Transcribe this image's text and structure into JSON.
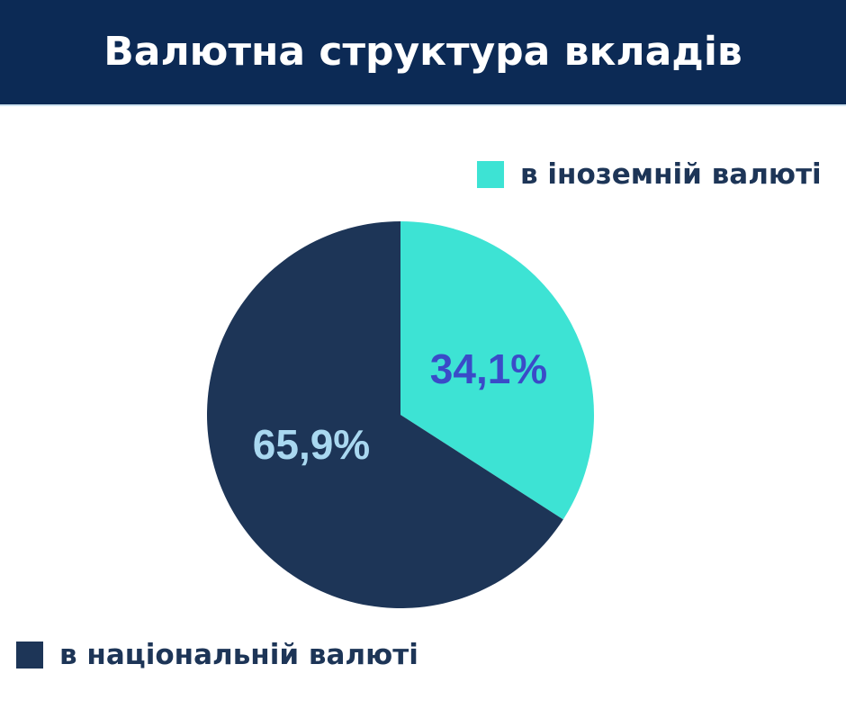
{
  "chart_data": {
    "type": "pie",
    "title": "Валютна структура вкладів",
    "slices": [
      {
        "name": "в іноземній валюті",
        "value": 34.1,
        "label": "34,1%",
        "color": "#3de3d4",
        "label_color": "#3a4bc8"
      },
      {
        "name": "в національній валюті",
        "value": 65.9,
        "label": "65,9%",
        "color": "#1d3557",
        "label_color": "#a9d8f0"
      }
    ],
    "start": "12 o'clock, clockwise"
  },
  "colors": {
    "header": "#0c2a55"
  }
}
